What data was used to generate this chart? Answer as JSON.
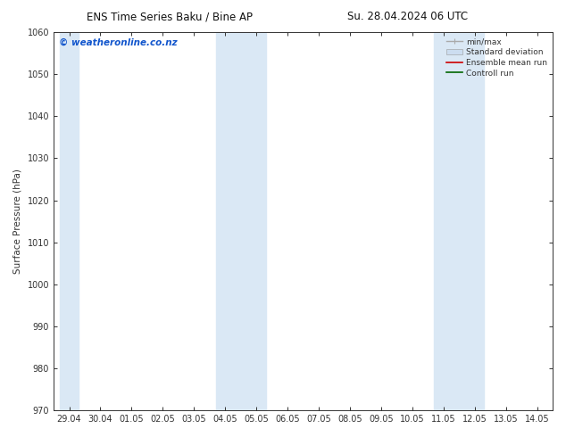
{
  "title_left": "ENS Time Series Baku / Bine AP",
  "title_right": "Su. 28.04.2024 06 UTC",
  "ylabel": "Surface Pressure (hPa)",
  "ylim": [
    970,
    1060
  ],
  "yticks": [
    970,
    980,
    990,
    1000,
    1010,
    1020,
    1030,
    1040,
    1050,
    1060
  ],
  "x_tick_labels": [
    "29.04",
    "30.04",
    "01.05",
    "02.05",
    "03.05",
    "04.05",
    "05.05",
    "06.05",
    "07.05",
    "08.05",
    "09.05",
    "10.05",
    "11.05",
    "12.05",
    "13.05",
    "14.05"
  ],
  "x_tick_positions": [
    0,
    1,
    2,
    3,
    4,
    5,
    6,
    7,
    8,
    9,
    10,
    11,
    12,
    13,
    14,
    15
  ],
  "shaded_bands": [
    {
      "xmin": -0.3,
      "xmax": 0.3
    },
    {
      "xmin": 4.7,
      "xmax": 6.3
    },
    {
      "xmin": 11.7,
      "xmax": 13.3
    }
  ],
  "shaded_color": "#dae8f5",
  "watermark": "© weatheronline.co.nz",
  "watermark_color": "#1155cc",
  "legend_entries": [
    {
      "label": "min/max",
      "color": "#aaaaaa",
      "lw": 1.0,
      "style": "solid"
    },
    {
      "label": "Standard deviation",
      "color": "#ccddf0",
      "lw": 5,
      "style": "solid"
    },
    {
      "label": "Ensemble mean run",
      "color": "#cc0000",
      "lw": 1.2,
      "style": "solid"
    },
    {
      "label": "Controll run",
      "color": "#006600",
      "lw": 1.2,
      "style": "solid"
    }
  ],
  "bg_color": "#ffffff",
  "spine_color": "#333333",
  "tick_color": "#333333",
  "title_fontsize": 8.5,
  "label_fontsize": 7.5,
  "tick_fontsize": 7,
  "watermark_fontsize": 7.5,
  "legend_fontsize": 6.5
}
